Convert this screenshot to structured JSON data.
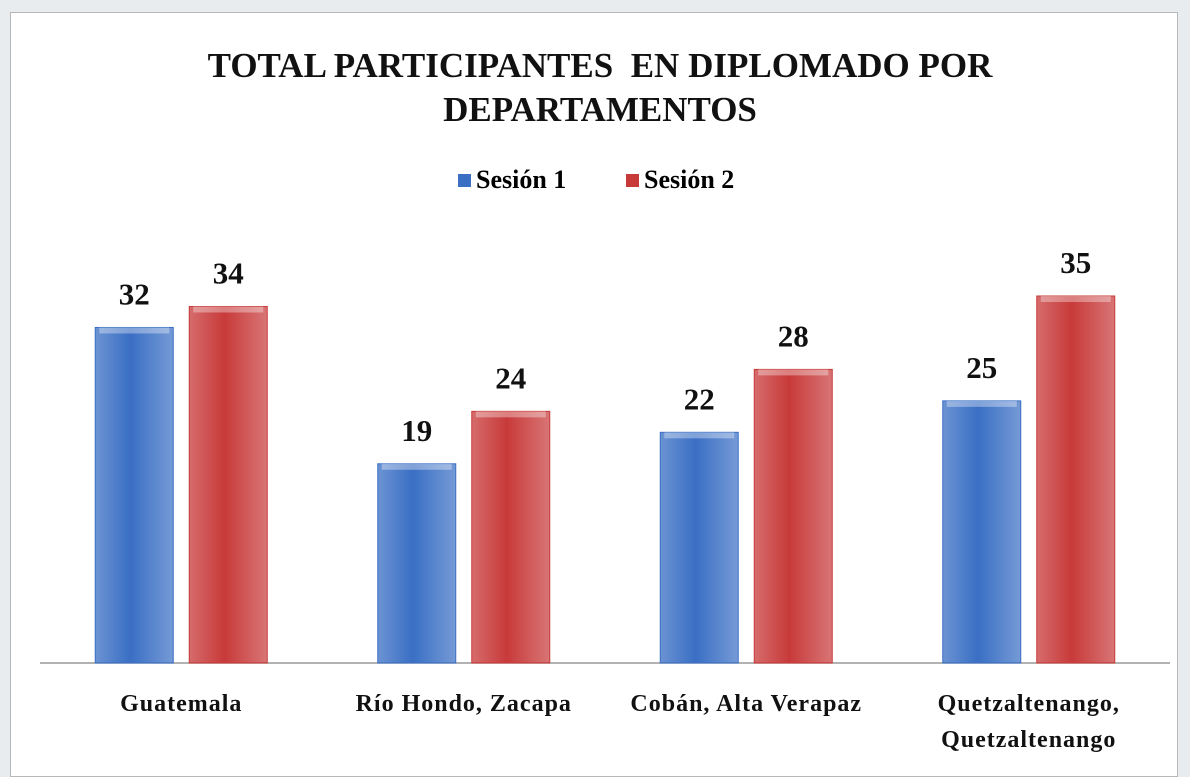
{
  "chart_data": {
    "type": "bar",
    "title": "TOTAL PARTICIPANTES  EN DIPLOMADO POR DEPARTAMENTOS",
    "categories": [
      "Guatemala",
      "Río Hondo, Zacapa",
      "Cobán, Alta Verapaz",
      "Quetzaltenango, Quetzaltenango"
    ],
    "series": [
      {
        "name": "Sesión 1",
        "color": "#3a6fc4",
        "values": [
          32,
          19,
          22,
          25
        ]
      },
      {
        "name": "Sesión 2",
        "color": "#c83a3a",
        "values": [
          34,
          24,
          28,
          35
        ]
      }
    ],
    "legend": "top",
    "data_labels": true
  }
}
